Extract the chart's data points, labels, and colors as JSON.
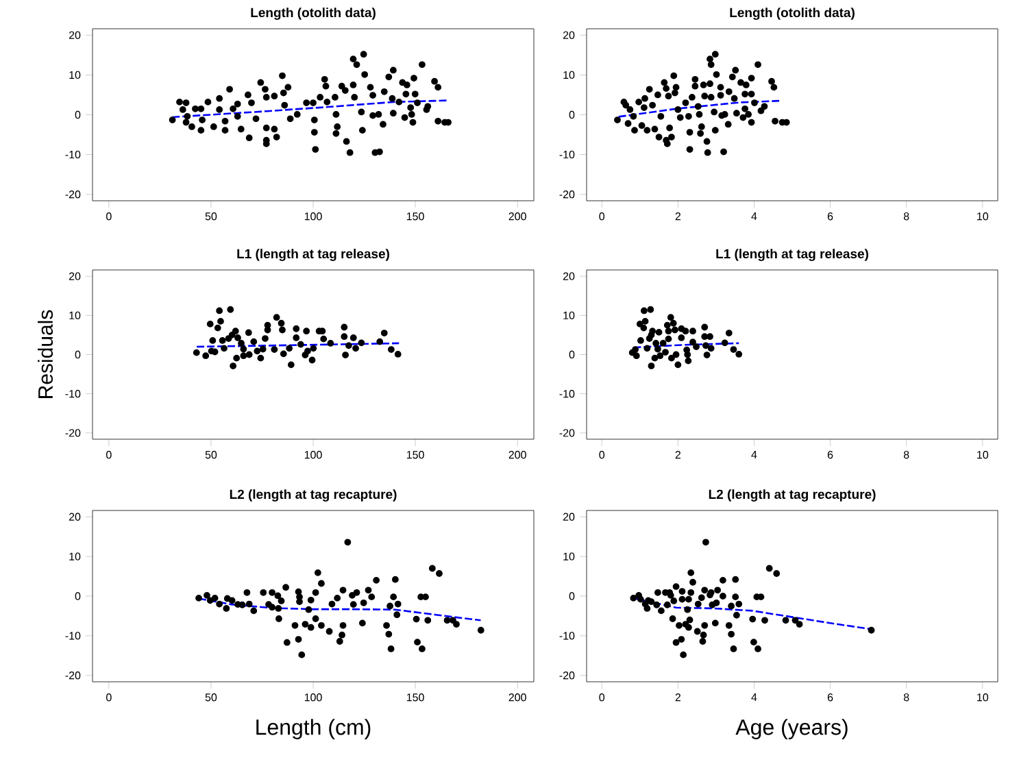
{
  "chart_data": [
    {
      "type": "scatter",
      "title": "Length (otolith data)",
      "xlim": [
        -8,
        208
      ],
      "ylim": [
        -21.6,
        21.6
      ],
      "xticks": [
        0,
        50,
        100,
        150,
        200
      ],
      "yticks": [
        -20,
        -10,
        0,
        10,
        20
      ],
      "series": [
        {
          "marker": "circle",
          "color": "#000000",
          "x": [
            31.1,
            34.6,
            37.8,
            36.2,
            38.4,
            37.8,
            40.6,
            42.3,
            45.1,
            45.7,
            45.1,
            48.5,
            51.3,
            54.1,
            54.1,
            56.9,
            56.9,
            59.1,
            60.8,
            63.0,
            63.0,
            64.7,
            68.1,
            68.7,
            69.8,
            72.0,
            74.3,
            76.5,
            77.1,
            77.1,
            77.1,
            77.1,
            81.0,
            81.0,
            82.1,
            84.9,
            85.5,
            87.7,
            86.0,
            88.8,
            92.2,
            96.7,
            100.0,
            100.6,
            100.6,
            101.1,
            103.4,
            105.6,
            106.2,
            106.8,
            110.7,
            111.2,
            111.2,
            111.8,
            114.0,
            115.7,
            116.3,
            118.0,
            119.6,
            121.3,
            124.7,
            119.6,
            120.2,
            123.6,
            124.1,
            125.2,
            128.0,
            129.2,
            129.2,
            132.0,
            130.3,
            132.5,
            134.2,
            134.8,
            137.0,
            139.2,
            138.7,
            139.2,
            142.0,
            143.7,
            144.8,
            145.4,
            145.9,
            147.7,
            148.2,
            148.8,
            149.3,
            149.9,
            151.0,
            153.3,
            155.5,
            156.1,
            159.4,
            161.1,
            161.1,
            164.4,
            166.1
          ],
          "values": [
            -1.3,
            3.2,
            3.0,
            1.3,
            -0.4,
            -1.9,
            -3.0,
            1.5,
            1.5,
            -1.3,
            -3.9,
            3.2,
            -3.0,
            4.1,
            1.3,
            -1.6,
            -3.9,
            6.4,
            1.5,
            2.7,
            -0.4,
            -3.6,
            5.0,
            -5.8,
            3.0,
            -1.0,
            8.1,
            6.4,
            4.4,
            -3.3,
            -6.4,
            -7.3,
            4.7,
            -3.6,
            -5.6,
            9.8,
            5.5,
            6.9,
            2.4,
            -1.0,
            0.1,
            3.0,
            3.0,
            -1.3,
            -4.4,
            -8.7,
            4.4,
            8.9,
            7.2,
            3.2,
            4.4,
            0.1,
            -4.7,
            -3.0,
            7.2,
            6.1,
            -6.7,
            -9.5,
            14.0,
            12.6,
            15.2,
            7.5,
            4.4,
            0.7,
            -3.9,
            10.1,
            6.9,
            4.9,
            -0.2,
            0.1,
            -9.5,
            -9.3,
            -2.4,
            5.8,
            9.5,
            11.2,
            4.1,
            0.4,
            3.2,
            8.1,
            -0.7,
            5.2,
            7.5,
            1.8,
            0.1,
            -1.9,
            9.2,
            5.2,
            3.0,
            12.6,
            1.3,
            2.1,
            8.4,
            6.9,
            -1.6,
            -1.9,
            -1.9
          ]
        },
        {
          "type": "line",
          "marker": "none",
          "line_style": "dashed",
          "color": "#0000ff",
          "x": [
            31,
            74.3,
            105.6,
            139.2,
            166.1
          ],
          "values": [
            -0.6,
            0.8,
            1.9,
            3.2,
            3.6
          ]
        }
      ]
    },
    {
      "type": "scatter",
      "title": "Length (otolith data)",
      "xlim": [
        -0.4,
        10.4
      ],
      "ylim": [
        -21.6,
        21.6
      ],
      "xticks": [
        0,
        2,
        4,
        6,
        8,
        10
      ],
      "yticks": [
        -20,
        -10,
        0,
        10,
        20
      ],
      "series": [
        {
          "marker": "circle",
          "color": "#000000",
          "x": [
            0.41,
            0.58,
            0.63,
            0.69,
            0.74,
            0.83,
            0.86,
            0.97,
            1.05,
            1.13,
            1.11,
            1.19,
            1.25,
            1.33,
            1.39,
            1.47,
            1.5,
            1.55,
            1.64,
            1.69,
            1.69,
            1.72,
            1.75,
            1.78,
            1.83,
            1.89,
            1.95,
            1.92,
            2.0,
            2.06,
            2.2,
            2.28,
            2.31,
            2.31,
            2.37,
            2.45,
            2.45,
            2.53,
            2.56,
            2.62,
            2.59,
            2.67,
            2.7,
            2.76,
            2.78,
            2.84,
            2.87,
            2.98,
            2.84,
            2.87,
            3.01,
            2.95,
            2.98,
            3.12,
            3.12,
            3.15,
            3.2,
            3.23,
            3.32,
            3.34,
            3.43,
            3.51,
            3.48,
            3.54,
            3.65,
            3.71,
            3.76,
            3.79,
            3.76,
            3.85,
            3.93,
            3.93,
            3.93,
            4.01,
            4.1,
            4.18,
            4.27,
            4.46,
            4.52,
            4.55,
            4.74,
            4.85
          ],
          "values": [
            -1.3,
            3.2,
            2.4,
            -2.2,
            1.3,
            -0.4,
            -3.9,
            3.2,
            -2.7,
            4.1,
            1.8,
            -3.9,
            6.4,
            2.4,
            -3.6,
            5.0,
            -5.6,
            -0.4,
            8.1,
            6.6,
            -6.4,
            -7.3,
            4.7,
            -3.3,
            -5.6,
            9.8,
            6.9,
            5.5,
            1.3,
            -0.7,
            3.0,
            -0.4,
            -8.7,
            -4.4,
            4.4,
            8.9,
            7.2,
            2.1,
            0.1,
            -3.0,
            -4.7,
            7.5,
            4.7,
            -6.7,
            -9.5,
            14.0,
            12.6,
            15.2,
            7.8,
            4.4,
            10.1,
            0.7,
            -3.9,
            6.9,
            4.9,
            -0.2,
            -9.3,
            0.1,
            -2.4,
            5.8,
            9.5,
            11.2,
            4.1,
            0.4,
            8.1,
            -0.7,
            5.2,
            7.5,
            1.5,
            0.1,
            9.2,
            5.2,
            -1.9,
            3.0,
            12.6,
            1.0,
            2.1,
            8.4,
            6.9,
            -1.6,
            -1.9,
            -1.9
          ]
        },
        {
          "type": "line",
          "marker": "none",
          "line_style": "dashed",
          "color": "#0000ff",
          "x": [
            0.44,
            1.95,
            3.62,
            4.66
          ],
          "values": [
            -0.5,
            1.5,
            3.1,
            3.5
          ]
        }
      ]
    },
    {
      "type": "scatter",
      "title": "L1 (length at tag release)",
      "ylabel": "Residuals",
      "xlim": [
        -8,
        208
      ],
      "ylim": [
        -21.6,
        21.6
      ],
      "xticks": [
        0,
        50,
        100,
        150,
        200
      ],
      "yticks": [
        -20,
        -10,
        0,
        10,
        20
      ],
      "series": [
        {
          "marker": "circle",
          "color": "#000000",
          "x": [
            42.9,
            47.4,
            49.6,
            50.8,
            50.2,
            51.9,
            54.1,
            54.7,
            53.3,
            55.6,
            56.4,
            59.5,
            58.6,
            60.3,
            60.8,
            62.0,
            62.5,
            63.1,
            64.8,
            65.9,
            65.9,
            68.4,
            68.7,
            70.9,
            72.6,
            74.3,
            75.4,
            76.5,
            77.7,
            77.7,
            81.0,
            82.1,
            84.4,
            84.9,
            85.5,
            88.3,
            89.2,
            91.7,
            91.7,
            93.9,
            96.1,
            96.7,
            97.3,
            99.5,
            100.1,
            102.9,
            104.5,
            105.1,
            108.5,
            115.2,
            115.2,
            115.8,
            117.4,
            119.7,
            120.8,
            123.6,
            132.6,
            134.8,
            138.2,
            141.5
          ],
          "values": [
            0.5,
            -0.3,
            7.8,
            3.6,
            0.9,
            0.7,
            11.2,
            8.5,
            6.8,
            3.6,
            1.6,
            11.5,
            4.1,
            5.0,
            -2.9,
            6.0,
            -0.9,
            4.3,
            2.9,
            1.4,
            -0.3,
            5.6,
            0.0,
            3.3,
            0.9,
            -0.9,
            1.4,
            4.1,
            7.5,
            6.3,
            1.3,
            9.5,
            8.0,
            6.3,
            0.2,
            1.6,
            -2.6,
            6.6,
            4.3,
            2.6,
            -0.1,
            6.0,
            0.9,
            -1.4,
            1.6,
            6.0,
            6.0,
            4.0,
            2.9,
            7.0,
            4.6,
            -0.1,
            2.3,
            4.3,
            1.6,
            3.0,
            3.3,
            5.5,
            1.3,
            0.1
          ]
        },
        {
          "type": "line",
          "marker": "none",
          "line_style": "dashed",
          "color": "#0000ff",
          "x": [
            43,
            90,
            142
          ],
          "values": [
            2.0,
            2.4,
            2.9
          ]
        }
      ]
    },
    {
      "type": "scatter",
      "title": "L1 (length at tag release)",
      "xlim": [
        -0.4,
        10.4
      ],
      "ylim": [
        -21.6,
        21.6
      ],
      "xticks": [
        0,
        2,
        4,
        6,
        8,
        10
      ],
      "yticks": [
        -20,
        -10,
        0,
        10,
        20
      ],
      "series": [
        {
          "marker": "circle",
          "color": "#000000",
          "x": [
            0.8,
            0.88,
            0.91,
            1.02,
            1.0,
            1.11,
            1.14,
            1.1,
            1.19,
            1.28,
            1.25,
            1.3,
            1.3,
            1.33,
            1.39,
            1.42,
            1.47,
            1.5,
            1.53,
            1.61,
            1.67,
            1.72,
            1.75,
            1.75,
            1.81,
            1.83,
            1.88,
            1.92,
            1.95,
            2.0,
            2.09,
            2.09,
            2.2,
            2.23,
            2.25,
            2.27,
            2.39,
            2.39,
            2.48,
            2.7,
            2.7,
            2.73,
            2.76,
            2.84,
            2.87,
            3.23,
            3.34,
            3.46,
            3.6
          ],
          "values": [
            0.5,
            1.3,
            -0.3,
            3.6,
            7.8,
            11.2,
            8.5,
            6.8,
            1.6,
            11.5,
            4.1,
            5.0,
            -2.9,
            6.0,
            -0.9,
            2.9,
            1.4,
            5.7,
            -0.3,
            2.9,
            0.6,
            7.5,
            6.0,
            4.0,
            9.5,
            -0.9,
            8.0,
            6.3,
            0.0,
            -2.6,
            6.6,
            4.3,
            6.0,
            1.2,
            0.0,
            -1.6,
            6.0,
            3.2,
            2.0,
            7.0,
            4.6,
            2.3,
            -0.1,
            4.6,
            1.6,
            3.0,
            5.5,
            1.3,
            0.1
          ]
        },
        {
          "type": "line",
          "marker": "none",
          "line_style": "dashed",
          "color": "#0000ff",
          "x": [
            0.83,
            2.2,
            3.6
          ],
          "values": [
            1.8,
            2.5,
            2.9
          ]
        }
      ]
    },
    {
      "type": "scatter",
      "title": "L2 (length at tag recapture)",
      "xlabel": "Length (cm)",
      "xlim": [
        -8,
        208
      ],
      "ylim": [
        -21.6,
        21.6
      ],
      "xticks": [
        0,
        50,
        100,
        150,
        200
      ],
      "yticks": [
        -20,
        -10,
        0,
        10,
        20
      ],
      "series": [
        {
          "marker": "circle",
          "color": "#000000",
          "x": [
            44.0,
            48.0,
            49.6,
            51.9,
            54.1,
            57.5,
            58.0,
            60.3,
            63.1,
            65.3,
            67.6,
            68.7,
            70.9,
            75.6,
            78.2,
            79.9,
            79.9,
            82.7,
            83.0,
            83.2,
            84.4,
            86.6,
            87.2,
            91.1,
            92.8,
            93.3,
            92.8,
            94.4,
            93.3,
            96.1,
            97.8,
            98.9,
            98.9,
            101.2,
            101.2,
            102.3,
            104.0,
            104.0,
            107.9,
            109.2,
            111.8,
            113.0,
            114.1,
            114.6,
            114.6,
            116.9,
            119.1,
            119.7,
            121.3,
            124.1,
            124.7,
            127.0,
            128.6,
            130.9,
            135.9,
            137.0,
            138.1,
            137.6,
            139.3,
            140.2,
            141.0,
            141.5,
            150.5,
            151.0,
            153.3,
            152.7,
            155.0,
            156.1,
            158.3,
            161.7,
            165.6,
            168.4,
            170.1,
            182.1
          ],
          "values": [
            -0.5,
            0.2,
            -1.1,
            -0.5,
            -2.0,
            -3.1,
            -0.6,
            -1.1,
            -2.1,
            -2.2,
            0.9,
            -2.0,
            -3.7,
            0.9,
            -2.1,
            0.9,
            -2.8,
            0.1,
            -3.1,
            -5.7,
            -1.2,
            2.2,
            -11.7,
            -7.4,
            1.1,
            -0.2,
            -10.9,
            -14.8,
            -1.4,
            -7.1,
            -3.4,
            -1.0,
            -7.9,
            0.9,
            -5.7,
            5.9,
            3.2,
            -7.4,
            -8.9,
            -2.0,
            -0.5,
            -11.4,
            -9.8,
            1.5,
            -7.4,
            13.6,
            0.2,
            -2.1,
            0.9,
            -6.8,
            -1.7,
            1.5,
            -0.2,
            4.0,
            -7.4,
            -9.6,
            -13.3,
            -2.5,
            -0.2,
            4.2,
            -4.7,
            -2.0,
            -5.8,
            -11.6,
            -13.3,
            -0.2,
            -0.2,
            -6.1,
            7.0,
            5.7,
            -6.1,
            -6.1,
            -7.1,
            -8.6
          ]
        },
        {
          "type": "line",
          "marker": "none",
          "line_style": "dashed",
          "color": "#0000ff",
          "x": [
            44,
            60,
            80,
            100,
            120,
            140,
            160,
            182
          ],
          "values": [
            -0.6,
            -2.1,
            -3.0,
            -3.3,
            -3.3,
            -3.4,
            -4.7,
            -6.1
          ]
        }
      ]
    },
    {
      "type": "scatter",
      "title": "L2 (length at tag recapture)",
      "xlabel": "Age (years)",
      "xlim": [
        -0.4,
        10.4
      ],
      "ylim": [
        -21.6,
        21.6
      ],
      "xticks": [
        0,
        2,
        4,
        6,
        8,
        10
      ],
      "yticks": [
        -20,
        -10,
        0,
        10,
        20
      ],
      "series": [
        {
          "marker": "circle",
          "color": "#000000",
          "x": [
            0.83,
            0.97,
            1.02,
            1.14,
            1.22,
            1.19,
            1.3,
            1.44,
            1.47,
            1.56,
            1.67,
            1.78,
            1.72,
            1.81,
            1.89,
            1.86,
            1.95,
            1.95,
            2.03,
            2.09,
            2.11,
            2.11,
            2.14,
            2.2,
            2.28,
            2.25,
            2.31,
            2.34,
            2.39,
            2.34,
            2.28,
            2.51,
            2.53,
            2.62,
            2.65,
            2.67,
            2.7,
            2.7,
            2.73,
            2.84,
            2.87,
            2.9,
            2.98,
            3.01,
            3.04,
            3.18,
            3.18,
            3.34,
            3.4,
            3.46,
            3.4,
            3.51,
            3.51,
            3.54,
            3.6,
            3.96,
            3.99,
            4.1,
            4.07,
            4.18,
            4.28,
            4.4,
            4.59,
            4.83,
            5.08,
            5.19,
            7.08
          ],
          "values": [
            -0.5,
            0.2,
            -0.8,
            -2.0,
            -1.1,
            -3.1,
            -1.4,
            -2.2,
            0.9,
            -3.7,
            0.9,
            0.9,
            -2.2,
            0.2,
            -1.2,
            -5.7,
            2.4,
            -11.7,
            -7.4,
            -10.9,
            1.2,
            -0.8,
            -14.8,
            -7.1,
            -0.8,
            -3.4,
            -6.0,
            5.9,
            3.5,
            0.9,
            -7.9,
            -8.9,
            -2.0,
            -0.4,
            -11.4,
            -9.8,
            1.5,
            -7.4,
            13.6,
            0.3,
            0.9,
            -2.2,
            -6.8,
            -1.7,
            1.5,
            0.0,
            4.0,
            -7.4,
            -9.6,
            -13.3,
            -2.5,
            -0.2,
            4.2,
            -4.8,
            -2.0,
            -5.8,
            -11.6,
            -13.3,
            -0.2,
            -0.2,
            -6.1,
            7.0,
            5.7,
            -6.1,
            -6.1,
            -7.1,
            -8.6
          ]
        },
        {
          "type": "line",
          "marker": "none",
          "line_style": "dashed",
          "color": "#0000ff",
          "x": [
            0.83,
            1.95,
            2.95,
            3.96,
            5.08,
            6.2,
            7.06
          ],
          "values": [
            -0.5,
            -2.9,
            -3.1,
            -3.7,
            -5.4,
            -7.1,
            -8.3
          ]
        }
      ]
    }
  ]
}
